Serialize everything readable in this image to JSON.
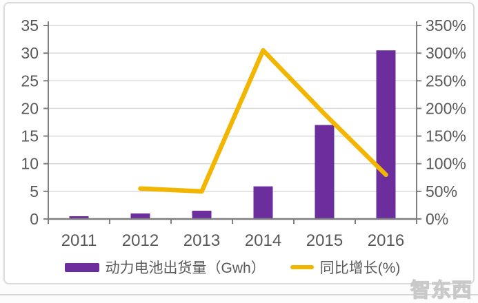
{
  "page": {
    "watermark": "智东西"
  },
  "colors": {
    "bar": "#6C2E9C",
    "line": "#F2B500",
    "grid": "#D9D9D9",
    "axis": "#7F7F7F",
    "text": "#595959",
    "panel_border": "#DADADA",
    "background": "#FFFFFF"
  },
  "chart_data": {
    "type": "bar",
    "subtype": "bar+line combo, dual axis",
    "title": "",
    "categories": [
      "2011",
      "2012",
      "2013",
      "2014",
      "2015",
      "2016"
    ],
    "series": [
      {
        "name": "动力电池出货量（Gwh）",
        "type": "bar",
        "axis": "left",
        "color": "#6C2E9C",
        "values": [
          0.5,
          1.0,
          1.5,
          5.9,
          17,
          30.5
        ]
      },
      {
        "name": "同比增长(%)",
        "type": "line",
        "axis": "right",
        "color": "#F2B500",
        "values": [
          null,
          55,
          50,
          305,
          190,
          80
        ]
      }
    ],
    "left_axis": {
      "min": 0,
      "max": 35,
      "step": 5,
      "tick_labels": [
        "0",
        "5",
        "10",
        "15",
        "20",
        "25",
        "30",
        "35"
      ]
    },
    "right_axis": {
      "min": 0,
      "max": 350,
      "step": 50,
      "tick_labels": [
        "0%",
        "50%",
        "100%",
        "150%",
        "200%",
        "250%",
        "300%",
        "350%"
      ]
    },
    "xlabel": "",
    "ylabel": "",
    "grid": true,
    "legend_position": "bottom"
  }
}
